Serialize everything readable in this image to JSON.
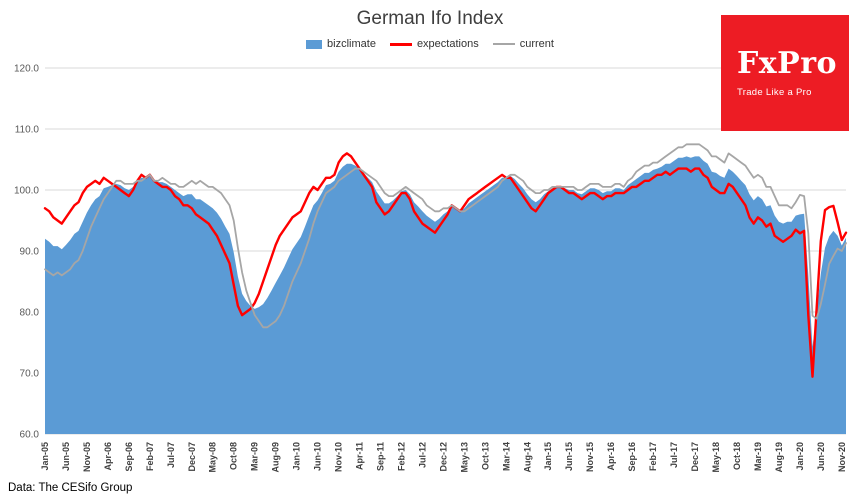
{
  "footer": {
    "text": "Data: The CESifo Group"
  },
  "logo": {
    "brand": "FxPro",
    "tagline": "Trade Like a Pro",
    "bg": "#ED1C24"
  },
  "legend": {
    "items": [
      {
        "label": "bizclimate",
        "color": "#5B9BD5",
        "marker": "area"
      },
      {
        "label": "expectations",
        "color": "#FF0000",
        "marker": "line"
      },
      {
        "label": "current",
        "color": "#A6A6A6",
        "marker": "line"
      }
    ]
  },
  "chart_data": {
    "type": "area",
    "title": "German Ifo Index",
    "x_unit": "month",
    "x_range": [
      "Jan-05",
      "Dec-20"
    ],
    "x_tick_step": 5,
    "x_tick_labels": [
      "Jan-05",
      "Jun-05",
      "Nov-05",
      "Apr-06",
      "Sep-06",
      "Feb-07",
      "Jul-07",
      "Dec-07",
      "May-08",
      "Oct-08",
      "Mar-09",
      "Aug-09",
      "Jan-10",
      "Jun-10",
      "Nov-10",
      "Apr-11",
      "Sep-11",
      "Feb-12",
      "Jul-12",
      "Dec-12",
      "May-13",
      "Oct-13",
      "Mar-14",
      "Aug-14",
      "Jan-15",
      "Jun-15",
      "Nov-15",
      "Apr-16",
      "Sep-16",
      "Feb-17",
      "Jul-17",
      "Dec-17",
      "May-18",
      "Oct-18",
      "Mar-19",
      "Aug-19",
      "Jan-20",
      "Jun-20",
      "Nov-20"
    ],
    "ylim": [
      60,
      120
    ],
    "y_ticks": [
      60,
      70,
      80,
      90,
      100,
      110,
      120
    ],
    "y_tick_labels": [
      "60.0",
      "70.0",
      "80.0",
      "90.0",
      "100.0",
      "110.0",
      "120.0"
    ],
    "grid": true,
    "legend_position": "top",
    "series": [
      {
        "name": "bizclimate",
        "type": "area",
        "color": "#5B9BD5",
        "line_width": 0,
        "values": [
          92.0,
          91.5,
          90.8,
          90.8,
          90.3,
          91.0,
          91.8,
          92.8,
          93.3,
          94.8,
          96.3,
          97.5,
          98.5,
          99.0,
          100.3,
          100.5,
          100.8,
          101.0,
          100.8,
          100.3,
          100.0,
          100.5,
          101.5,
          102.0,
          102.0,
          102.5,
          101.5,
          101.3,
          101.3,
          101.0,
          100.5,
          100.0,
          99.5,
          99.0,
          99.3,
          99.3,
          98.5,
          98.5,
          98.0,
          97.5,
          97.0,
          96.3,
          95.3,
          94.0,
          92.8,
          89.8,
          85.8,
          83.0,
          81.8,
          81.0,
          80.5,
          80.8,
          81.3,
          82.3,
          83.5,
          84.8,
          86.0,
          87.3,
          88.8,
          90.3,
          91.3,
          92.3,
          94.0,
          95.8,
          97.5,
          98.3,
          99.5,
          100.8,
          101.0,
          101.5,
          103.0,
          103.8,
          104.3,
          104.3,
          104.0,
          103.5,
          102.8,
          102.0,
          101.3,
          99.8,
          98.8,
          97.8,
          97.8,
          98.3,
          99.0,
          99.8,
          100.0,
          99.3,
          98.0,
          97.3,
          96.5,
          95.8,
          95.3,
          94.8,
          95.3,
          96.0,
          96.5,
          97.5,
          97.0,
          96.5,
          97.0,
          97.8,
          98.3,
          98.8,
          99.3,
          99.8,
          100.3,
          100.8,
          101.3,
          102.0,
          102.0,
          102.3,
          101.8,
          101.0,
          100.3,
          99.3,
          98.5,
          98.0,
          98.5,
          99.3,
          99.8,
          100.3,
          100.5,
          100.5,
          100.3,
          100.0,
          100.0,
          99.5,
          99.3,
          99.8,
          100.3,
          100.3,
          100.0,
          99.5,
          99.8,
          99.8,
          100.3,
          100.3,
          100.0,
          100.8,
          101.3,
          101.8,
          102.3,
          102.8,
          102.8,
          103.3,
          103.5,
          103.8,
          104.3,
          104.3,
          104.8,
          105.3,
          105.3,
          105.5,
          105.3,
          105.5,
          105.5,
          104.8,
          104.3,
          103.0,
          102.8,
          102.3,
          102.0,
          103.5,
          103.0,
          102.3,
          101.5,
          100.8,
          99.3,
          98.3,
          99.0,
          98.5,
          97.3,
          97.5,
          95.8,
          94.8,
          94.5,
          94.8,
          94.8,
          95.8,
          96.0,
          96.1,
          86.1,
          74.3,
          79.7,
          86.3,
          90.5,
          92.4,
          93.3,
          92.5,
          90.9,
          92.2
        ]
      },
      {
        "name": "expectations",
        "type": "line",
        "color": "#FF0000",
        "line_width": 2.4,
        "values": [
          97.0,
          96.5,
          95.5,
          95.0,
          94.5,
          95.5,
          96.5,
          97.5,
          98.0,
          99.5,
          100.5,
          101.0,
          101.5,
          101.0,
          102.0,
          101.5,
          101.0,
          100.5,
          100.0,
          99.5,
          99.0,
          100.0,
          101.5,
          102.5,
          102.0,
          102.5,
          101.5,
          101.0,
          100.5,
          100.5,
          100.0,
          99.0,
          98.5,
          97.5,
          97.5,
          97.0,
          96.0,
          95.5,
          95.0,
          94.5,
          93.5,
          92.5,
          91.0,
          89.5,
          88.0,
          84.5,
          81.0,
          79.5,
          80.0,
          80.5,
          81.5,
          83.0,
          85.0,
          87.0,
          89.0,
          91.0,
          92.5,
          93.5,
          94.5,
          95.5,
          96.0,
          96.5,
          98.0,
          99.5,
          100.5,
          100.0,
          101.0,
          102.0,
          102.0,
          102.5,
          104.5,
          105.5,
          106.0,
          105.5,
          104.5,
          103.5,
          102.5,
          101.5,
          100.5,
          98.0,
          97.0,
          96.0,
          96.5,
          97.5,
          98.5,
          99.5,
          99.5,
          98.5,
          96.5,
          95.5,
          94.5,
          94.0,
          93.5,
          93.0,
          94.0,
          95.0,
          96.0,
          97.5,
          97.0,
          96.5,
          97.5,
          98.5,
          99.0,
          99.5,
          100.0,
          100.5,
          101.0,
          101.5,
          102.0,
          102.5,
          102.0,
          102.0,
          101.0,
          100.0,
          99.0,
          98.0,
          97.0,
          96.5,
          97.5,
          98.5,
          99.5,
          100.0,
          100.5,
          100.5,
          100.0,
          99.5,
          99.5,
          99.0,
          98.5,
          99.0,
          99.5,
          99.5,
          99.0,
          98.5,
          99.0,
          99.0,
          99.5,
          99.5,
          99.5,
          100.0,
          100.5,
          100.5,
          101.0,
          101.5,
          101.5,
          102.0,
          102.5,
          102.5,
          103.0,
          102.5,
          103.0,
          103.5,
          103.5,
          103.5,
          103.0,
          103.5,
          103.5,
          102.5,
          102.0,
          100.5,
          100.0,
          99.5,
          99.5,
          101.0,
          100.5,
          99.5,
          98.5,
          97.5,
          95.5,
          94.5,
          95.5,
          95.0,
          94.0,
          94.5,
          92.5,
          92.0,
          91.5,
          92.0,
          92.5,
          93.5,
          92.9,
          93.3,
          79.5,
          69.4,
          80.5,
          91.6,
          96.7,
          97.2,
          97.4,
          94.7,
          91.8,
          93.0
        ]
      },
      {
        "name": "current",
        "type": "line",
        "color": "#A6A6A6",
        "line_width": 1.8,
        "values": [
          87.0,
          86.5,
          86.0,
          86.5,
          86.0,
          86.5,
          87.0,
          88.0,
          88.5,
          90.0,
          92.0,
          94.0,
          95.5,
          97.0,
          98.5,
          99.5,
          100.5,
          101.5,
          101.5,
          101.0,
          101.0,
          101.0,
          101.5,
          101.5,
          102.0,
          102.5,
          101.5,
          101.5,
          102.0,
          101.5,
          101.0,
          101.0,
          100.5,
          100.5,
          101.0,
          101.5,
          101.0,
          101.5,
          101.0,
          100.5,
          100.5,
          100.0,
          99.5,
          98.5,
          97.5,
          95.0,
          90.5,
          86.5,
          83.5,
          81.5,
          79.5,
          78.5,
          77.5,
          77.5,
          78.0,
          78.5,
          79.5,
          81.0,
          83.0,
          85.0,
          86.5,
          88.0,
          90.0,
          92.0,
          94.5,
          96.5,
          98.0,
          99.5,
          100.0,
          100.5,
          101.5,
          102.0,
          102.5,
          103.0,
          103.5,
          103.5,
          103.0,
          102.5,
          102.0,
          101.5,
          100.5,
          99.5,
          99.0,
          99.0,
          99.5,
          100.0,
          100.5,
          100.0,
          99.5,
          99.0,
          98.5,
          97.5,
          97.0,
          96.5,
          96.5,
          97.0,
          97.0,
          97.5,
          97.0,
          96.5,
          96.5,
          97.0,
          97.5,
          98.0,
          98.5,
          99.0,
          99.5,
          100.0,
          100.5,
          101.5,
          102.0,
          102.5,
          102.5,
          102.0,
          101.5,
          100.5,
          100.0,
          99.5,
          99.5,
          100.0,
          100.0,
          100.5,
          100.5,
          100.5,
          100.5,
          100.5,
          100.5,
          100.0,
          100.0,
          100.5,
          101.0,
          101.0,
          101.0,
          100.5,
          100.5,
          100.5,
          101.0,
          101.0,
          100.5,
          101.5,
          102.0,
          103.0,
          103.5,
          104.0,
          104.0,
          104.5,
          104.5,
          105.0,
          105.5,
          106.0,
          106.5,
          107.0,
          107.0,
          107.5,
          107.5,
          107.5,
          107.5,
          107.0,
          106.5,
          105.5,
          105.5,
          105.0,
          104.5,
          106.0,
          105.5,
          105.0,
          104.5,
          104.0,
          103.0,
          102.0,
          102.5,
          102.0,
          100.5,
          100.5,
          99.0,
          97.5,
          97.5,
          97.5,
          97.0,
          98.0,
          99.2,
          99.0,
          92.9,
          79.4,
          78.9,
          81.3,
          84.5,
          87.9,
          89.2,
          90.4,
          90.0,
          91.3
        ]
      }
    ]
  }
}
